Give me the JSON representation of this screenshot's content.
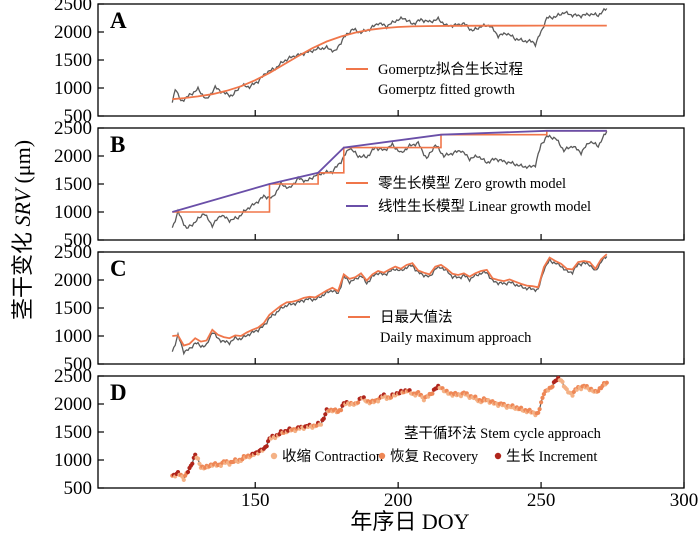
{
  "chart_data": {
    "type": "line",
    "xlabel": "年序日 DOY",
    "ylabel": "茎干变化 SRV (μm)",
    "ylabel_parts": {
      "prefix": "茎干变化 ",
      "italic": "SRV",
      "suffix": " (μm)"
    },
    "xlim": [
      95,
      300
    ],
    "xticks": [
      150,
      200,
      250,
      300
    ],
    "yticks": [
      500,
      1000,
      1500,
      2000,
      2500
    ],
    "ylim": [
      500,
      2500
    ],
    "colors": {
      "observed": "#5a5a5a",
      "fit": "#f0764a",
      "linear": "#6a4fa8",
      "contraction": "#f4b185",
      "recovery": "#ee8756",
      "increment": "#b0251c"
    },
    "panels": [
      {
        "letter": "A",
        "legend": [
          {
            "label": "Gomerptz拟合生长过程",
            "color": "#f0764a",
            "sym": "line"
          },
          {
            "label": "Gomerptz fitted growth",
            "color": null,
            "sym": "none"
          }
        ],
        "observed": {
          "x": [
            121,
            122,
            124,
            127,
            130,
            133,
            136,
            139,
            142,
            145,
            148,
            151,
            154,
            157,
            160,
            163,
            166,
            169,
            172,
            175,
            178,
            181,
            184,
            187,
            190,
            193,
            196,
            199,
            202,
            205,
            208,
            211,
            214,
            217,
            220,
            223,
            226,
            229,
            232,
            235,
            238,
            241,
            244,
            247,
            248,
            250,
            252,
            255,
            258,
            261,
            264,
            267,
            270,
            273
          ],
          "y": [
            740,
            1000,
            760,
            870,
            980,
            790,
            1010,
            910,
            860,
            1050,
            1020,
            1120,
            1280,
            1350,
            1480,
            1560,
            1600,
            1650,
            1700,
            1720,
            1650,
            1900,
            2050,
            1990,
            2050,
            2160,
            2100,
            2200,
            2250,
            2140,
            2220,
            2180,
            2230,
            2110,
            2120,
            2150,
            2020,
            2100,
            2120,
            1930,
            1980,
            1880,
            1840,
            1830,
            1780,
            2000,
            2250,
            2270,
            2350,
            2300,
            2290,
            2320,
            2300,
            2420
          ]
        },
        "fit": {
          "x": [
            121,
            125,
            130,
            135,
            140,
            145,
            150,
            155,
            160,
            165,
            170,
            175,
            180,
            185,
            190,
            195,
            200,
            205,
            210,
            220,
            230,
            240,
            250,
            260,
            273
          ],
          "y": [
            800,
            820,
            850,
            890,
            950,
            1030,
            1140,
            1270,
            1420,
            1570,
            1710,
            1830,
            1920,
            1990,
            2040,
            2070,
            2090,
            2100,
            2105,
            2110,
            2112,
            2113,
            2114,
            2114,
            2115
          ]
        }
      },
      {
        "letter": "B",
        "legend": [
          {
            "label": "零生长模型 Zero growth model",
            "color": "#f0764a",
            "sym": "line"
          },
          {
            "label": "线性生长模型 Linear growth model",
            "color": "#6a4fa8",
            "sym": "line"
          }
        ],
        "observed": {
          "x": [
            121,
            123,
            126,
            129,
            132,
            135,
            138,
            141,
            144,
            147,
            150,
            153,
            156,
            159,
            162,
            165,
            168,
            171,
            174,
            177,
            180,
            183,
            186,
            189,
            192,
            195,
            198,
            201,
            204,
            207,
            210,
            213,
            216,
            219,
            222,
            225,
            228,
            231,
            234,
            237,
            240,
            243,
            246,
            248,
            250,
            252,
            255,
            258,
            261,
            264,
            267,
            270,
            273
          ],
          "y": [
            720,
            1000,
            700,
            820,
            980,
            760,
            950,
            850,
            900,
            1050,
            1150,
            1280,
            1250,
            1500,
            1420,
            1600,
            1550,
            1650,
            1700,
            1720,
            1900,
            2150,
            2000,
            1980,
            2150,
            2100,
            2200,
            2050,
            2180,
            2230,
            1950,
            2200,
            2000,
            2050,
            2100,
            1950,
            2000,
            1880,
            1950,
            1900,
            1870,
            1820,
            1800,
            1840,
            2200,
            2350,
            2320,
            2100,
            2180,
            2060,
            2260,
            2180,
            2440
          ]
        },
        "zero": {
          "x": [
            121,
            122,
            155,
            155,
            172,
            172,
            181,
            181,
            215,
            215,
            252,
            252,
            273
          ],
          "y": [
            1000,
            1000,
            1000,
            1500,
            1500,
            1700,
            1700,
            2150,
            2150,
            2380,
            2380,
            2450,
            2450
          ]
        },
        "linear": {
          "x": [
            121,
            155,
            172,
            181,
            215,
            252,
            273
          ],
          "y": [
            1000,
            1500,
            1700,
            2150,
            2380,
            2450,
            2450
          ]
        }
      },
      {
        "letter": "C",
        "legend": [
          {
            "label": "日最大值法",
            "color": "#f0764a",
            "sym": "line"
          },
          {
            "label": "Daily maximum approach",
            "color": null,
            "sym": "none"
          }
        ],
        "observed": {
          "x": [
            121,
            123,
            125,
            127,
            129,
            131,
            133,
            135,
            137,
            139,
            141,
            143,
            145,
            147,
            149,
            151,
            153,
            155,
            157,
            159,
            161,
            163,
            165,
            167,
            169,
            171,
            173,
            175,
            177,
            179,
            181,
            183,
            185,
            187,
            189,
            191,
            193,
            195,
            197,
            199,
            201,
            203,
            205,
            207,
            209,
            211,
            213,
            215,
            217,
            219,
            221,
            223,
            225,
            227,
            229,
            231,
            233,
            235,
            237,
            239,
            241,
            243,
            245,
            247,
            249,
            251,
            253,
            255,
            257,
            259,
            261,
            263,
            265,
            267,
            269,
            271,
            273
          ],
          "y": [
            720,
            1010,
            720,
            760,
            880,
            820,
            830,
            1080,
            950,
            900,
            880,
            960,
            950,
            1010,
            1060,
            1110,
            1180,
            1320,
            1400,
            1490,
            1550,
            1570,
            1600,
            1640,
            1660,
            1650,
            1710,
            1770,
            1820,
            1750,
            2060,
            1970,
            2010,
            2080,
            1940,
            2060,
            2130,
            2090,
            2150,
            2200,
            2160,
            2230,
            2260,
            2130,
            2090,
            2050,
            2200,
            2230,
            2160,
            2060,
            2040,
            2080,
            2010,
            2080,
            2120,
            2140,
            1980,
            1950,
            1930,
            1960,
            1920,
            1880,
            1850,
            1840,
            1820,
            2190,
            2350,
            2300,
            2250,
            2150,
            2140,
            2280,
            2300,
            2280,
            2150,
            2330,
            2420
          ]
        },
        "fit": {
          "x": [
            121,
            123,
            125,
            127,
            129,
            131,
            133,
            135,
            137,
            139,
            141,
            143,
            145,
            147,
            149,
            151,
            153,
            155,
            157,
            159,
            161,
            163,
            165,
            167,
            169,
            171,
            173,
            175,
            177,
            179,
            181,
            183,
            185,
            187,
            189,
            191,
            193,
            195,
            197,
            199,
            201,
            203,
            205,
            207,
            209,
            211,
            213,
            215,
            217,
            219,
            221,
            223,
            225,
            227,
            229,
            231,
            233,
            235,
            237,
            239,
            241,
            243,
            245,
            247,
            249,
            251,
            253,
            255,
            257,
            259,
            261,
            263,
            265,
            267,
            269,
            271,
            273
          ],
          "y": [
            1000,
            1010,
            830,
            860,
            960,
            900,
            920,
            1110,
            1020,
            980,
            960,
            1010,
            1000,
            1060,
            1110,
            1150,
            1230,
            1380,
            1460,
            1540,
            1600,
            1610,
            1640,
            1680,
            1700,
            1690,
            1750,
            1810,
            1860,
            1800,
            2100,
            2020,
            2050,
            2120,
            1990,
            2100,
            2160,
            2130,
            2190,
            2240,
            2200,
            2270,
            2300,
            2170,
            2130,
            2100,
            2240,
            2270,
            2200,
            2110,
            2090,
            2120,
            2060,
            2120,
            2160,
            2180,
            2030,
            2000,
            1980,
            2010,
            1970,
            1930,
            1900,
            1890,
            1870,
            2230,
            2400,
            2340,
            2290,
            2200,
            2190,
            2320,
            2340,
            2320,
            2200,
            2370,
            2460
          ]
        }
      },
      {
        "letter": "D",
        "legend": [
          {
            "label": "茎干循环法 Stem cycle approach",
            "color": null,
            "sym": "none"
          },
          {
            "label": "收缩 Contraction",
            "color": "#f4b185",
            "sym": "dot"
          },
          {
            "label": "恢复 Recovery",
            "color": "#ee8756",
            "sym": "dot"
          },
          {
            "label": "生长 Increment",
            "color": "#b0251c",
            "sym": "dot"
          }
        ],
        "observed": {
          "x": [
            121,
            123,
            125,
            127,
            129,
            131,
            133,
            135,
            137,
            139,
            141,
            143,
            145,
            147,
            149,
            151,
            153,
            155,
            157,
            159,
            161,
            163,
            165,
            167,
            169,
            171,
            173,
            175,
            177,
            179,
            181,
            183,
            185,
            187,
            189,
            191,
            193,
            195,
            197,
            199,
            201,
            203,
            205,
            207,
            209,
            211,
            213,
            215,
            217,
            219,
            221,
            223,
            225,
            227,
            229,
            231,
            233,
            235,
            237,
            239,
            241,
            243,
            245,
            247,
            249,
            251,
            253,
            255,
            257,
            259,
            261,
            263,
            265,
            267,
            269,
            271,
            273
          ],
          "y": [
            720,
            760,
            680,
            830,
            1100,
            880,
            860,
            930,
            900,
            960,
            950,
            980,
            1000,
            1070,
            1080,
            1150,
            1180,
            1380,
            1420,
            1480,
            1520,
            1540,
            1560,
            1590,
            1600,
            1610,
            1650,
            1870,
            1900,
            1850,
            2000,
            2020,
            1980,
            2120,
            2050,
            2030,
            2080,
            2150,
            2100,
            2180,
            2200,
            2250,
            2180,
            2190,
            2100,
            2150,
            2280,
            2300,
            2200,
            2180,
            2160,
            2190,
            2140,
            2100,
            2050,
            2080,
            2020,
            2000,
            1980,
            1950,
            1940,
            1900,
            1880,
            1850,
            1820,
            2210,
            2260,
            2420,
            2440,
            2230,
            2180,
            2290,
            2310,
            2280,
            2200,
            2300,
            2380
          ]
        }
      }
    ]
  }
}
